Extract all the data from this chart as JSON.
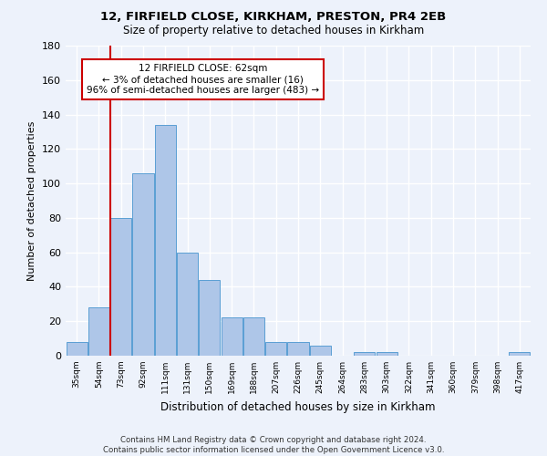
{
  "title1": "12, FIRFIELD CLOSE, KIRKHAM, PRESTON, PR4 2EB",
  "title2": "Size of property relative to detached houses in Kirkham",
  "xlabel": "Distribution of detached houses by size in Kirkham",
  "ylabel": "Number of detached properties",
  "bar_labels": [
    "35sqm",
    "54sqm",
    "73sqm",
    "92sqm",
    "111sqm",
    "131sqm",
    "150sqm",
    "169sqm",
    "188sqm",
    "207sqm",
    "226sqm",
    "245sqm",
    "264sqm",
    "283sqm",
    "303sqm",
    "322sqm",
    "341sqm",
    "360sqm",
    "379sqm",
    "398sqm",
    "417sqm"
  ],
  "bar_values": [
    8,
    28,
    80,
    106,
    134,
    60,
    44,
    22,
    22,
    8,
    8,
    6,
    0,
    2,
    2,
    0,
    0,
    0,
    0,
    0,
    2
  ],
  "bar_color": "#aec6e8",
  "bar_edge_color": "#5a9fd4",
  "ylim": [
    0,
    180
  ],
  "yticks": [
    0,
    20,
    40,
    60,
    80,
    100,
    120,
    140,
    160,
    180
  ],
  "vline_x": 1.5,
  "vline_color": "#cc0000",
  "annotation_text": "12 FIRFIELD CLOSE: 62sqm\n← 3% of detached houses are smaller (16)\n96% of semi-detached houses are larger (483) →",
  "footer": "Contains HM Land Registry data © Crown copyright and database right 2024.\nContains public sector information licensed under the Open Government Licence v3.0.",
  "bg_color": "#edf2fb",
  "plot_bg_color": "#edf2fb",
  "grid_color": "#ffffff"
}
